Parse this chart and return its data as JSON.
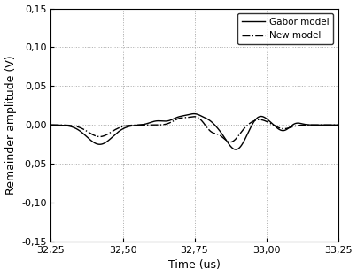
{
  "title": "",
  "xlabel": "Time (us)",
  "ylabel": "Remainder amplitude (V)",
  "xlim": [
    32.25,
    33.25
  ],
  "ylim": [
    -0.15,
    0.15
  ],
  "xticks": [
    32.25,
    32.5,
    32.75,
    33.0,
    33.25
  ],
  "yticks": [
    -0.15,
    -0.1,
    -0.05,
    0.0,
    0.05,
    0.1,
    0.15
  ],
  "xticklabels": [
    "32,25",
    "32,50",
    "32,75",
    "33,00",
    "33,25"
  ],
  "yticklabels": [
    "-0,15",
    "-0,10",
    "-0,05",
    "0,00",
    "0,05",
    "0,10",
    "0,15"
  ],
  "gabor_color": "#000000",
  "new_color": "#000000",
  "legend_labels": [
    "Gabor model",
    "New model"
  ],
  "background_color": "#ffffff",
  "grid_color": "#aaaaaa"
}
